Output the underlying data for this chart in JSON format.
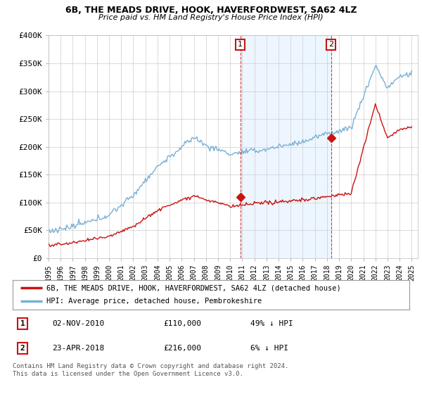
{
  "title": "6B, THE MEADS DRIVE, HOOK, HAVERFORDWEST, SA62 4LZ",
  "subtitle": "Price paid vs. HM Land Registry's House Price Index (HPI)",
  "ylim": [
    0,
    400000
  ],
  "yticks": [
    0,
    50000,
    100000,
    150000,
    200000,
    250000,
    300000,
    350000,
    400000
  ],
  "ytick_labels": [
    "£0",
    "£50K",
    "£100K",
    "£150K",
    "£200K",
    "£250K",
    "£300K",
    "£350K",
    "£400K"
  ],
  "hpi_color": "#7ab0d4",
  "price_color": "#cc1111",
  "sale1_year_idx": 191,
  "sale1_price": 110000,
  "sale2_year_idx": 280,
  "sale2_price": 216000,
  "sale1_label": "1",
  "sale2_label": "2",
  "shaded_color": "#ddeeff",
  "shaded_alpha": 0.5,
  "legend_property": "6B, THE MEADS DRIVE, HOOK, HAVERFORDWEST, SA62 4LZ (detached house)",
  "legend_hpi": "HPI: Average price, detached house, Pembrokeshire",
  "table_row1": [
    "1",
    "02-NOV-2010",
    "£110,000",
    "49% ↓ HPI"
  ],
  "table_row2": [
    "2",
    "23-APR-2018",
    "£216,000",
    "6% ↓ HPI"
  ],
  "footer": "Contains HM Land Registry data © Crown copyright and database right 2024.\nThis data is licensed under the Open Government Licence v3.0.",
  "background_color": "#ffffff",
  "grid_color": "#cccccc"
}
